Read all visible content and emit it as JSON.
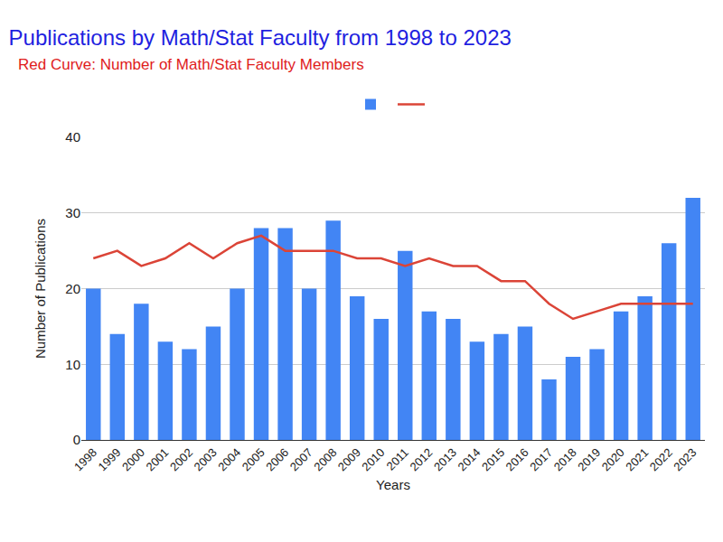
{
  "chart_data": {
    "type": "bar",
    "title": "Publications by Math/Stat Faculty from 1998 to 2023",
    "subtitle": "Red Curve: Number of Math/Stat Faculty Members",
    "x_label": "Years",
    "y_label": "Number of Publications",
    "categories": [
      "1998",
      "1999",
      "2000",
      "2001",
      "2002",
      "2003",
      "2004",
      "2005",
      "2006",
      "2007",
      "2008",
      "2009",
      "2010",
      "2011",
      "2012",
      "2013",
      "2014",
      "2015",
      "2016",
      "2017",
      "2018",
      "2019",
      "2020",
      "2021",
      "2022",
      "2023"
    ],
    "series": [
      {
        "type": "bar",
        "color": "#4285f4",
        "values": [
          20,
          14,
          18,
          13,
          12,
          15,
          20,
          28,
          28,
          20,
          29,
          19,
          16,
          25,
          17,
          16,
          13,
          14,
          15,
          8,
          11,
          12,
          17,
          19,
          26,
          32
        ]
      },
      {
        "type": "line",
        "color": "#db4437",
        "values": [
          24,
          25,
          23,
          24,
          26,
          24,
          26,
          27,
          25,
          25,
          25,
          24,
          24,
          23,
          24,
          23,
          23,
          21,
          21,
          18,
          16,
          17,
          18,
          18,
          18,
          18
        ]
      }
    ],
    "ylim": [
      0,
      40
    ],
    "yticks": [
      0,
      10,
      20,
      30,
      40
    ],
    "grid": true,
    "legend": "top"
  }
}
